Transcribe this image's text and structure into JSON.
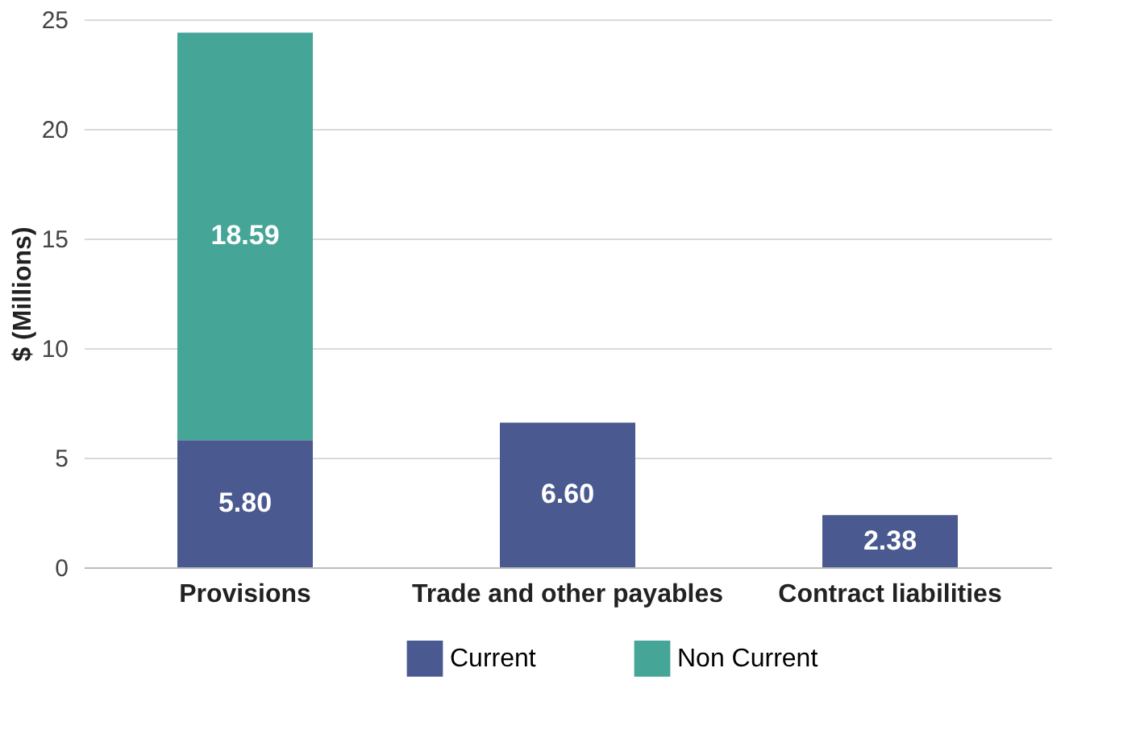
{
  "chart_data": {
    "type": "bar",
    "stacked": true,
    "ylabel": "$ (Millions)",
    "categories": [
      "Provisions",
      "Trade and other payables",
      "Contract liabilities"
    ],
    "series": [
      {
        "name": "Current",
        "color": "#4a5a91",
        "values": [
          5.8,
          6.6,
          2.38
        ],
        "value_labels": [
          "5.80",
          "6.60",
          "2.38"
        ]
      },
      {
        "name": "Non Current",
        "color": "#45a597",
        "values": [
          18.59,
          null,
          null
        ],
        "value_labels": [
          "18.59",
          null,
          null
        ]
      }
    ],
    "ylim": [
      0,
      25
    ],
    "yticks": [
      0,
      5,
      10,
      15,
      20,
      25
    ],
    "grid": "y",
    "legend": "bottom"
  }
}
